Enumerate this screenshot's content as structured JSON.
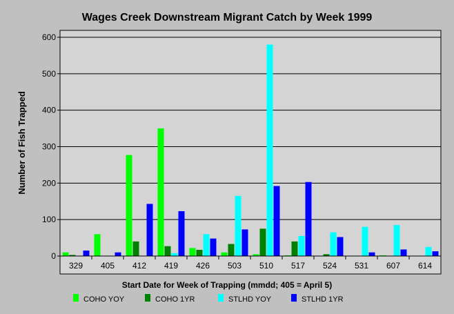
{
  "chart_data": {
    "type": "bar",
    "title": "Wages Creek Downstream Migrant Catch by Week 1999",
    "xlabel": "Start Date for Week of Trapping (mmdd; 405 = April 5)",
    "ylabel": "Number of Fish Trapped",
    "ylim": [
      0,
      600
    ],
    "yticks": [
      "0",
      "100",
      "200",
      "300",
      "400",
      "500",
      "600"
    ],
    "grid": true,
    "legend_position": "bottom",
    "categories": [
      "329",
      "405",
      "412",
      "419",
      "426",
      "503",
      "510",
      "517",
      "524",
      "531",
      "607",
      "614"
    ],
    "series": [
      {
        "name": "COHO YOY",
        "color": "#00ff00",
        "values": [
          10,
          60,
          277,
          350,
          22,
          10,
          5,
          2,
          0,
          0,
          2,
          0
        ]
      },
      {
        "name": "COHO 1YR",
        "color": "#008000",
        "values": [
          3,
          0,
          40,
          27,
          17,
          33,
          75,
          40,
          5,
          0,
          0,
          0
        ]
      },
      {
        "name": "STLHD YOY",
        "color": "#00ffff",
        "values": [
          0,
          0,
          0,
          8,
          60,
          165,
          580,
          55,
          65,
          80,
          85,
          25
        ]
      },
      {
        "name": "STLHD 1YR",
        "color": "#0000ff",
        "values": [
          15,
          10,
          143,
          123,
          48,
          73,
          192,
          203,
          52,
          10,
          18,
          13
        ]
      }
    ]
  }
}
